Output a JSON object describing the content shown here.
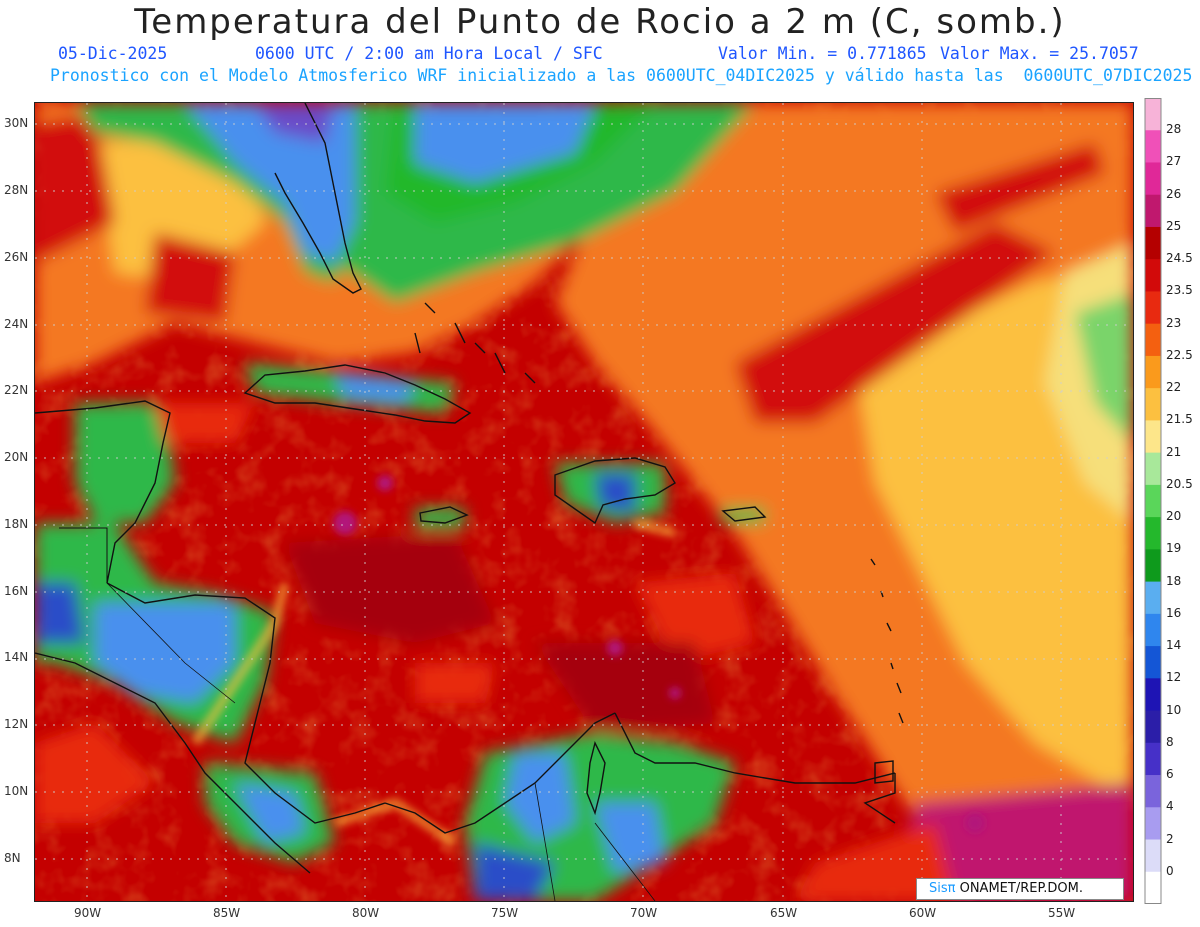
{
  "header": {
    "title": "Temperatura del Punto de Rocio a 2 m (C, somb.)",
    "date": "05-Dic-2025",
    "time": "0600 UTC / 2:00 am Hora Local / SFC",
    "min": "Valor Min. = 0.771865",
    "max": "Valor Max. = 25.7057",
    "model_line": "Pronostico con el Modelo Atmosferico WRF inicializado a las 0600UTC_04DIC2025 y válido hasta las  0600UTC_07DIC2025"
  },
  "axes": {
    "lat_labels": [
      "30N",
      "28N",
      "26N",
      "24N",
      "22N",
      "20N",
      "18N",
      "16N",
      "14N",
      "12N",
      "10N",
      "8N"
    ],
    "lon_labels": [
      "90W",
      "85W",
      "80W",
      "75W",
      "70W",
      "65W",
      "60W",
      "55W"
    ]
  },
  "colorbar": {
    "labels": [
      "28",
      "27",
      "26",
      "25",
      "24.5",
      "23.5",
      "23",
      "22.5",
      "22",
      "21.5",
      "21",
      "20.5",
      "20",
      "19",
      "18",
      "16",
      "14",
      "12",
      "10",
      "8",
      "6",
      "4",
      "2",
      "0"
    ],
    "colors": [
      "#f7b3d8",
      "#f050b8",
      "#e02898",
      "#c0186e",
      "#b40000",
      "#d20a0a",
      "#e82a10",
      "#f46010",
      "#fa9a1c",
      "#fcc040",
      "#fde68a",
      "#a8e89a",
      "#5ad65a",
      "#24b82c",
      "#0e9a1c",
      "#5aaef0",
      "#2f86ee",
      "#1456d6",
      "#1e14b4",
      "#2b1ea8",
      "#4630c8",
      "#7a64dc",
      "#a89cf0",
      "#dcdcf8",
      "#ffffff"
    ]
  },
  "field_colors": {
    "hot": "#c40000",
    "hotter": "#a50010",
    "magenta": "#b2127a",
    "orange": "#f47820",
    "yellow": "#fcc040",
    "green": "#2fb84a",
    "lightgreen": "#7ad46a",
    "blue": "#4a90ee",
    "deepblue": "#2a4ec8",
    "violet": "#6a4cc8"
  },
  "credit": {
    "brand": "Sisπ",
    "text": " ONAMET/REP.DOM."
  }
}
